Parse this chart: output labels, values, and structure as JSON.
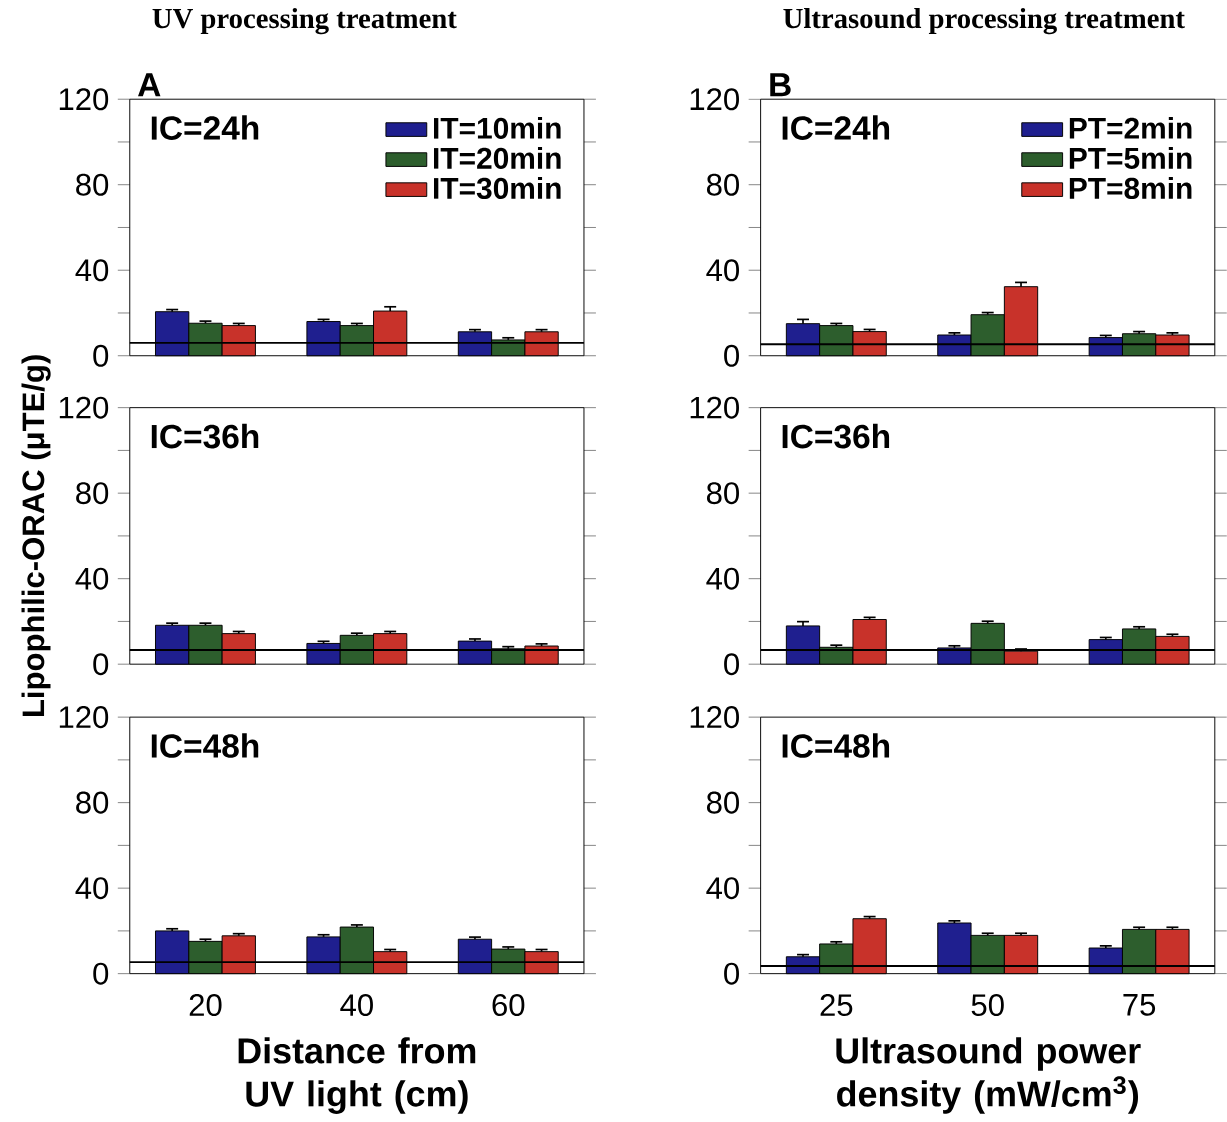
{
  "chart_data": [
    {
      "type": "bar",
      "title": "UV processing treatment",
      "annotations": [
        "A",
        "IC=24h"
      ],
      "categories": [
        "20",
        "40",
        "60"
      ],
      "tick_labels": "y",
      "ylim": [
        0,
        120
      ],
      "yticks": [
        0,
        {
          "value": 20,
          "label": null
        },
        40,
        {
          "value": 60,
          "label": null
        },
        80,
        {
          "value": 100,
          "label": null
        },
        120
      ],
      "legend": "top right",
      "ref_lines": [
        {
          "axis": "y",
          "value": 6
        }
      ],
      "series": [
        {
          "name": "IT=10min",
          "color": "#1f1f8f",
          "values": [
            20.6,
            16.0,
            11.2
          ],
          "errors": [
            1,
            1,
            1
          ]
        },
        {
          "name": "IT=20min",
          "color": "#2d5e2d",
          "values": [
            15.2,
            14.1,
            7.4
          ],
          "errors": [
            1,
            1,
            1
          ]
        },
        {
          "name": "IT=30min",
          "color": "#c8322a",
          "values": [
            14.1,
            20.9,
            11.2
          ],
          "errors": [
            1,
            2,
            1
          ]
        }
      ]
    },
    {
      "type": "bar",
      "title": "Ultrasound processing treatment",
      "annotations": [
        "B",
        "IC=24h"
      ],
      "categories": [
        "25",
        "50",
        "75"
      ],
      "tick_labels": "y",
      "ylim": [
        0,
        120
      ],
      "yticks": [
        0,
        {
          "value": 20,
          "label": null
        },
        40,
        {
          "value": 60,
          "label": null
        },
        80,
        {
          "value": 100,
          "label": null
        },
        120
      ],
      "legend": "top right",
      "ref_lines": [
        {
          "axis": "y",
          "value": 5.4
        }
      ],
      "series": [
        {
          "name": "PT=2min",
          "color": "#1f1f8f",
          "values": [
            15.0,
            9.7,
            8.5
          ],
          "errors": [
            2,
            1,
            1
          ]
        },
        {
          "name": "PT=5min",
          "color": "#2d5e2d",
          "values": [
            14.1,
            19.2,
            10.3
          ],
          "errors": [
            1,
            1,
            1
          ]
        },
        {
          "name": "PT=8min",
          "color": "#c8322a",
          "values": [
            11.3,
            32.3,
            9.7
          ],
          "errors": [
            1,
            2,
            1
          ]
        }
      ]
    },
    {
      "type": "bar",
      "annotations": [
        "IC=36h"
      ],
      "ylabel": "Lipophilic-ORAC (μTE/g)",
      "categories": [
        "20",
        "40",
        "60"
      ],
      "tick_labels": "y",
      "ylim": [
        0,
        120
      ],
      "yticks": [
        0,
        {
          "value": 20,
          "label": null
        },
        40,
        {
          "value": 60,
          "label": null
        },
        80,
        {
          "value": 100,
          "label": null
        },
        120
      ],
      "ref_lines": [
        {
          "axis": "y",
          "value": 6.6
        }
      ],
      "series": [
        {
          "color": "#1f1f8f",
          "values": [
            18.2,
            9.7,
            10.8
          ],
          "errors": [
            1,
            1,
            1
          ]
        },
        {
          "color": "#2d5e2d",
          "values": [
            18.2,
            13.5,
            7.2
          ],
          "errors": [
            1,
            1,
            1
          ]
        },
        {
          "color": "#c8322a",
          "values": [
            14.3,
            14.3,
            8.5
          ],
          "errors": [
            1,
            1,
            1
          ]
        }
      ]
    },
    {
      "type": "bar",
      "annotations": [
        "IC=36h"
      ],
      "categories": [
        "25",
        "50",
        "75"
      ],
      "tick_labels": "y",
      "ylim": [
        0,
        120
      ],
      "yticks": [
        0,
        {
          "value": 20,
          "label": null
        },
        40,
        {
          "value": 60,
          "label": null
        },
        80,
        {
          "value": 100,
          "label": null
        },
        120
      ],
      "ref_lines": [
        {
          "axis": "y",
          "value": 6.6
        }
      ],
      "series": [
        {
          "color": "#1f1f8f",
          "values": [
            17.9,
            7.6,
            11.5
          ],
          "errors": [
            2,
            1,
            1
          ]
        },
        {
          "color": "#2d5e2d",
          "values": [
            7.9,
            19.1,
            16.5
          ],
          "errors": [
            1,
            1,
            1
          ]
        },
        {
          "color": "#c8322a",
          "values": [
            20.9,
            6.1,
            13.0
          ],
          "errors": [
            1,
            1,
            1
          ]
        }
      ]
    },
    {
      "type": "bar",
      "annotations": [
        "IC=48h"
      ],
      "xlabel": "Distance from UV light (cm)",
      "categories": [
        "20",
        "40",
        "60"
      ],
      "ylim": [
        0,
        120
      ],
      "yticks": [
        0,
        {
          "value": 20,
          "label": null
        },
        40,
        {
          "value": 60,
          "label": null
        },
        80,
        {
          "value": 100,
          "label": null
        },
        120
      ],
      "ref_lines": [
        {
          "axis": "y",
          "value": 5.4
        }
      ],
      "series": [
        {
          "color": "#1f1f8f",
          "values": [
            20.0,
            17.2,
            16.1
          ],
          "errors": [
            1,
            1,
            1
          ]
        },
        {
          "color": "#2d5e2d",
          "values": [
            15.1,
            21.8,
            11.5
          ],
          "errors": [
            1,
            1,
            1
          ]
        },
        {
          "color": "#c8322a",
          "values": [
            17.7,
            10.3,
            10.3
          ],
          "errors": [
            1,
            1,
            1
          ]
        }
      ]
    },
    {
      "type": "bar",
      "annotations": [
        "IC=48h"
      ],
      "xlabel": "Ultrasound power density (mW/cm$^{3}$)",
      "categories": [
        "25",
        "50",
        "75"
      ],
      "ylim": [
        0,
        120
      ],
      "yticks": [
        0,
        {
          "value": 20,
          "label": null
        },
        40,
        {
          "value": 60,
          "label": null
        },
        80,
        {
          "value": 100,
          "label": null
        },
        120
      ],
      "ref_lines": [
        {
          "axis": "y",
          "value": 3.6
        }
      ],
      "series": [
        {
          "color": "#1f1f8f",
          "values": [
            7.9,
            23.7,
            12.0
          ],
          "errors": [
            1,
            1,
            1
          ]
        },
        {
          "color": "#2d5e2d",
          "values": [
            13.9,
            17.9,
            20.7
          ],
          "errors": [
            1,
            1,
            1
          ]
        },
        {
          "color": "#c8322a",
          "values": [
            25.7,
            17.9,
            20.7
          ],
          "errors": [
            1,
            1,
            1
          ]
        }
      ]
    }
  ]
}
